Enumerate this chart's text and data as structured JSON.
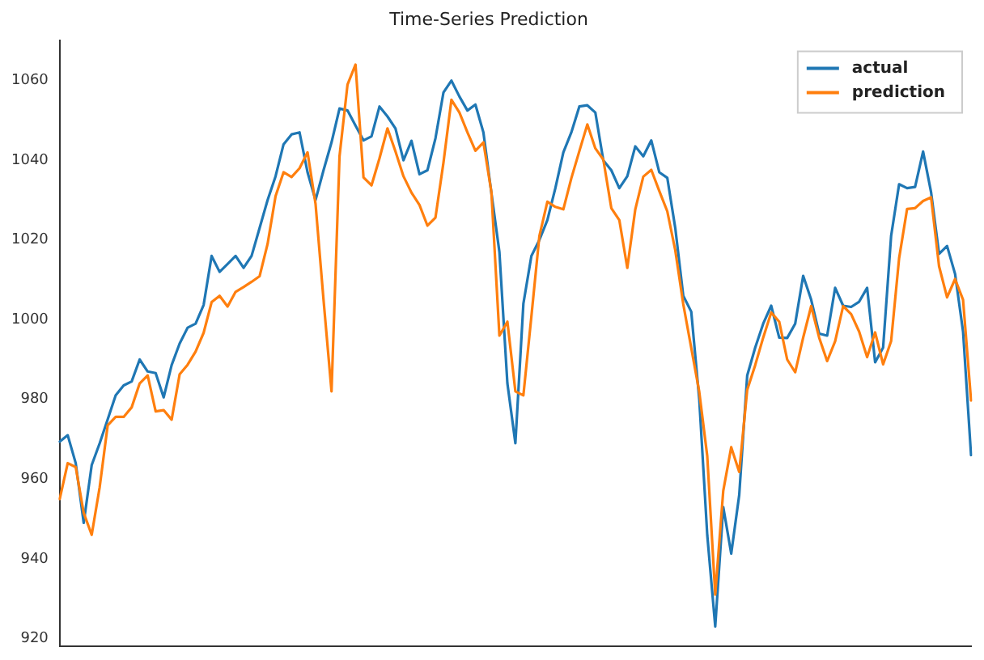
{
  "chart_data": {
    "type": "line",
    "title": "Time-Series Prediction",
    "categories": [
      null,
      null,
      null,
      null,
      null,
      null,
      null,
      null,
      null,
      null,
      null,
      null,
      null,
      null,
      null,
      null,
      null,
      null,
      null,
      null,
      null,
      null,
      null,
      null,
      null,
      null,
      null,
      null,
      null,
      null,
      null,
      null,
      null,
      null,
      null,
      null,
      null,
      null,
      null,
      null,
      null,
      null,
      null,
      null,
      null,
      null,
      null,
      null,
      null,
      null,
      null,
      null,
      null,
      null,
      null,
      null,
      null,
      null,
      null,
      null,
      null,
      null,
      null,
      null,
      null,
      null,
      null,
      null,
      null,
      null,
      null,
      null,
      null,
      null,
      null,
      null,
      null,
      null,
      null,
      null,
      null,
      null,
      null,
      null,
      null,
      null,
      null,
      null,
      null,
      null,
      null,
      null,
      null,
      null,
      null,
      null,
      null,
      null,
      null,
      null,
      null,
      null,
      null,
      null,
      null,
      null,
      null,
      null,
      null,
      null,
      null,
      null,
      null,
      null,
      null
    ],
    "series": [
      {
        "name": "actual",
        "color": "#1f77b4",
        "values": [
          969.4,
          971,
          964,
          949,
          963.5,
          969,
          975,
          981,
          983.5,
          984.5,
          990,
          987,
          986.6,
          980.5,
          988.6,
          994,
          998,
          999,
          1003.7,
          1016,
          1012,
          1014,
          1016,
          1013,
          1016,
          1023,
          1030,
          1036,
          1044,
          1046.5,
          1047,
          1037,
          1030,
          1037.5,
          1044.5,
          1053,
          1052.5,
          1048.7,
          1045,
          1046,
          1053.5,
          1051,
          1048,
          1040,
          1044.9,
          1036.5,
          1037.5,
          1045.5,
          1057,
          1060,
          1056,
          1052.5,
          1054,
          1047,
          1031.8,
          1017,
          984,
          969,
          1004,
          1016,
          1020,
          1025,
          1033,
          1042,
          1047,
          1053.5,
          1053.8,
          1052,
          1040,
          1037.5,
          1033,
          1036,
          1043.5,
          1041,
          1045,
          1037,
          1035.6,
          1023,
          1006,
          1002,
          980,
          946,
          923,
          953,
          941.3,
          956,
          986,
          993,
          999,
          1003.5,
          995.5,
          995.4,
          999,
          1011,
          1005,
          996.5,
          996,
          1008,
          1003.5,
          1003.2,
          1004.5,
          1008,
          989.3,
          993,
          1021,
          1034,
          1033,
          1033.3,
          1042.2,
          1032,
          1016.5,
          1018.5,
          1011.5,
          997,
          966
        ]
      },
      {
        "name": "prediction",
        "color": "#ff7f0e",
        "values": [
          955,
          964,
          963,
          951.5,
          946,
          958,
          973.5,
          975.6,
          975.6,
          978,
          984,
          986,
          977,
          977.3,
          974.9,
          986.3,
          988.7,
          992,
          996.7,
          1004.4,
          1006,
          1003.3,
          1007,
          1008.2,
          1009.5,
          1010.9,
          1019,
          1031,
          1037,
          1035.8,
          1038,
          1042,
          1029.1,
          1005,
          982,
          1041,
          1059,
          1064,
          1035.7,
          1033.7,
          1040.5,
          1048,
          1042.2,
          1036,
          1031.9,
          1028.8,
          1023.6,
          1025.6,
          1039.4,
          1055.2,
          1052,
          1047,
          1042.4,
          1044.5,
          1032,
          996,
          999.5,
          982,
          981,
          1000.8,
          1021,
          1029.6,
          1028.3,
          1027.7,
          1035.5,
          1042.3,
          1049,
          1043,
          1040.2,
          1028,
          1025,
          1013,
          1027.7,
          1035.9,
          1037.6,
          1032.3,
          1027.2,
          1017.4,
          1003.9,
          992.9,
          981.9,
          965.8,
          931,
          957,
          968,
          961.8,
          982.4,
          988.6,
          995.5,
          1001.8,
          999.5,
          990,
          986.8,
          995.5,
          1003.4,
          995.5,
          989.6,
          994.6,
          1003.4,
          1001.4,
          997,
          990.6,
          996.8,
          988.8,
          994.6,
          1015.4,
          1027.8,
          1028,
          1029.8,
          1030.7,
          1013.4,
          1005.6,
          1010.2,
          1005,
          979.7
        ]
      }
    ],
    "ylim": [
      918,
      1070
    ],
    "yticks": [
      920,
      940,
      960,
      980,
      1000,
      1020,
      1040,
      1060
    ],
    "tick_labels": "y",
    "legend": "top right",
    "marker": "none",
    "line_style": "solid"
  }
}
